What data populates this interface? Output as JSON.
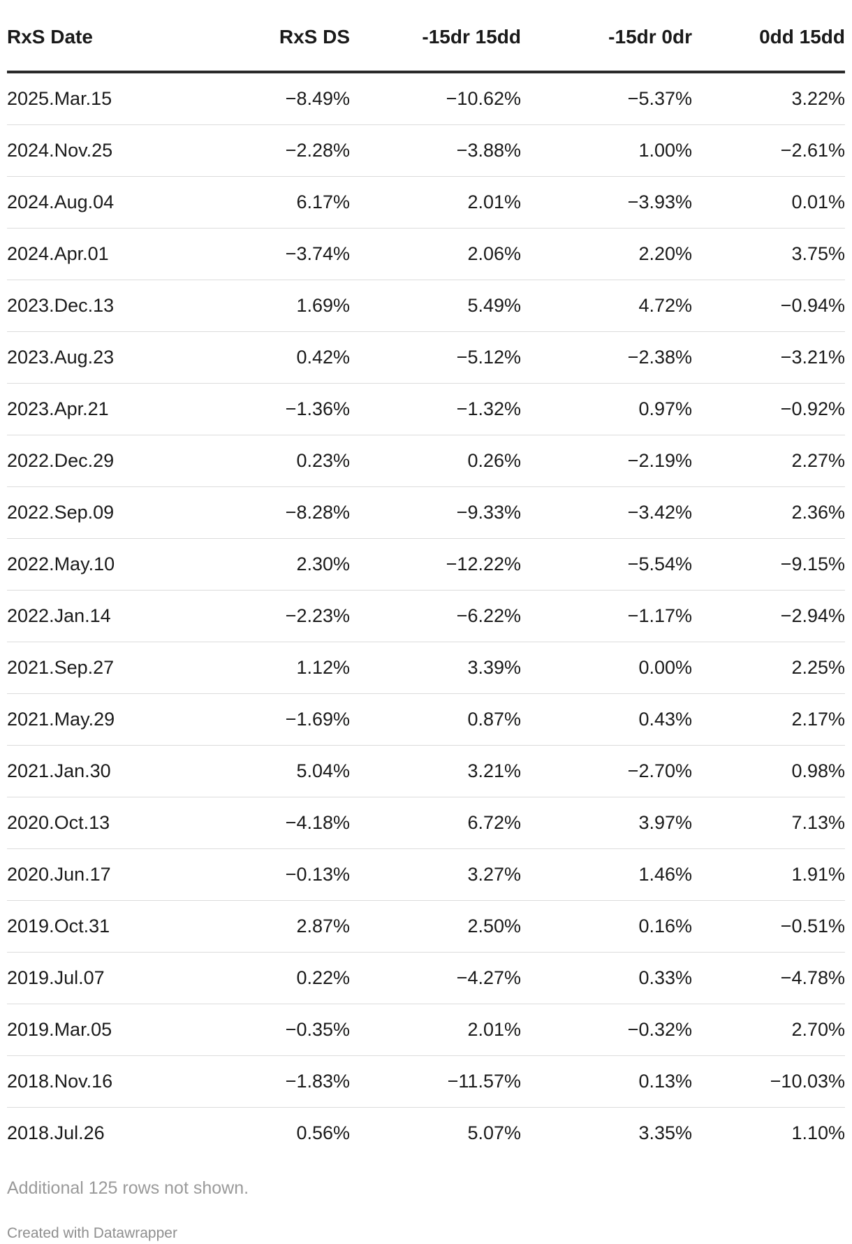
{
  "chart_data": {
    "type": "table",
    "columns": [
      "RxS Date",
      "RxS DS",
      "-15dr 15dd",
      "-15dr 0dr",
      "0dd 15dd"
    ],
    "rows": [
      [
        "2025.Mar.15",
        "−8.49%",
        "−10.62%",
        "−5.37%",
        "3.22%"
      ],
      [
        "2024.Nov.25",
        "−2.28%",
        "−3.88%",
        "1.00%",
        "−2.61%"
      ],
      [
        "2024.Aug.04",
        "6.17%",
        "2.01%",
        "−3.93%",
        "0.01%"
      ],
      [
        "2024.Apr.01",
        "−3.74%",
        "2.06%",
        "2.20%",
        "3.75%"
      ],
      [
        "2023.Dec.13",
        "1.69%",
        "5.49%",
        "4.72%",
        "−0.94%"
      ],
      [
        "2023.Aug.23",
        "0.42%",
        "−5.12%",
        "−2.38%",
        "−3.21%"
      ],
      [
        "2023.Apr.21",
        "−1.36%",
        "−1.32%",
        "0.97%",
        "−0.92%"
      ],
      [
        "2022.Dec.29",
        "0.23%",
        "0.26%",
        "−2.19%",
        "2.27%"
      ],
      [
        "2022.Sep.09",
        "−8.28%",
        "−9.33%",
        "−3.42%",
        "2.36%"
      ],
      [
        "2022.May.10",
        "2.30%",
        "−12.22%",
        "−5.54%",
        "−9.15%"
      ],
      [
        "2022.Jan.14",
        "−2.23%",
        "−6.22%",
        "−1.17%",
        "−2.94%"
      ],
      [
        "2021.Sep.27",
        "1.12%",
        "3.39%",
        "0.00%",
        "2.25%"
      ],
      [
        "2021.May.29",
        "−1.69%",
        "0.87%",
        "0.43%",
        "2.17%"
      ],
      [
        "2021.Jan.30",
        "5.04%",
        "3.21%",
        "−2.70%",
        "0.98%"
      ],
      [
        "2020.Oct.13",
        "−4.18%",
        "6.72%",
        "3.97%",
        "7.13%"
      ],
      [
        "2020.Jun.17",
        "−0.13%",
        "3.27%",
        "1.46%",
        "1.91%"
      ],
      [
        "2019.Oct.31",
        "2.87%",
        "2.50%",
        "0.16%",
        "−0.51%"
      ],
      [
        "2019.Jul.07",
        "0.22%",
        "−4.27%",
        "0.33%",
        "−4.78%"
      ],
      [
        "2019.Mar.05",
        "−0.35%",
        "2.01%",
        "−0.32%",
        "2.70%"
      ],
      [
        "2018.Nov.16",
        "−1.83%",
        "−11.57%",
        "0.13%",
        "−10.03%"
      ],
      [
        "2018.Jul.26",
        "0.56%",
        "5.07%",
        "3.35%",
        "1.10%"
      ]
    ],
    "note": "Additional 125 rows not shown.",
    "credit": "Created with Datawrapper"
  }
}
